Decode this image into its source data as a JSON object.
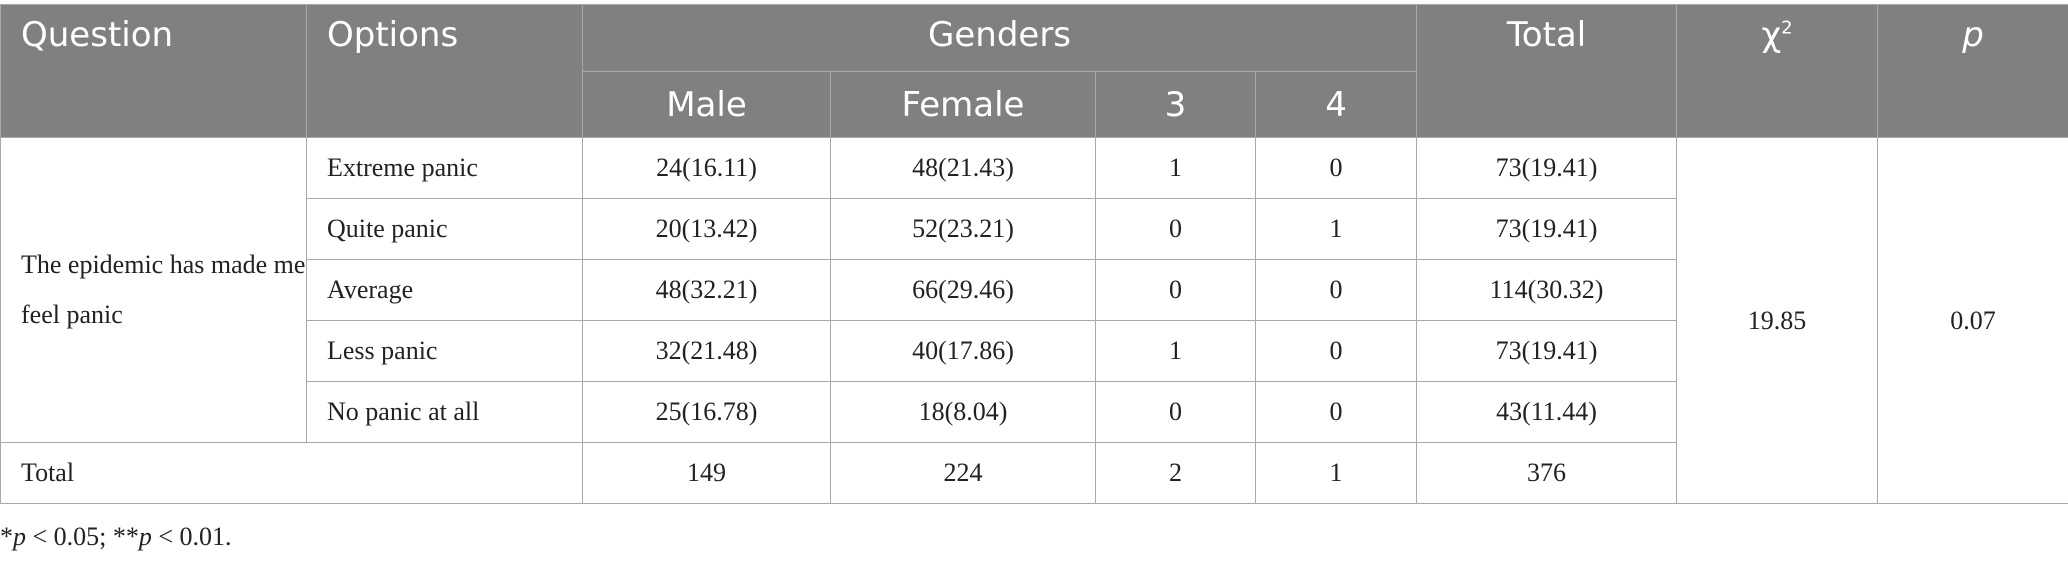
{
  "header": {
    "question": "Question",
    "options": "Options",
    "genders": "Genders",
    "total": "Total",
    "chi_symbol": "χ",
    "chi_superscript": "2",
    "p": "p",
    "sub": [
      "Male",
      "Female",
      "3",
      "4"
    ]
  },
  "question_text": "The epidemic has made me feel panic",
  "rows": [
    {
      "option": "Extreme panic",
      "male": "24(16.11)",
      "female": "48(21.43)",
      "g3": "1",
      "g4": "0",
      "total": "73(19.41)"
    },
    {
      "option": "Quite panic",
      "male": "20(13.42)",
      "female": "52(23.21)",
      "g3": "0",
      "g4": "1",
      "total": "73(19.41)"
    },
    {
      "option": "Average",
      "male": "48(32.21)",
      "female": "66(29.46)",
      "g3": "0",
      "g4": "0",
      "total": "114(30.32)"
    },
    {
      "option": "Less panic",
      "male": "32(21.48)",
      "female": "40(17.86)",
      "g3": "1",
      "g4": "0",
      "total": "73(19.41)"
    },
    {
      "option": "No panic at all",
      "male": "25(16.78)",
      "female": "18(8.04)",
      "g3": "0",
      "g4": "0",
      "total": "43(11.44)"
    }
  ],
  "chi_value": "19.85",
  "p_value": "0.07",
  "totals": {
    "label": "Total",
    "male": "149",
    "female": "224",
    "g3": "2",
    "g4": "1",
    "total": "376"
  },
  "footnote": {
    "star1": "*",
    "p1": "p",
    "rest1": " < 0.05; **",
    "p2": "p",
    "rest2": " < 0.01."
  }
}
